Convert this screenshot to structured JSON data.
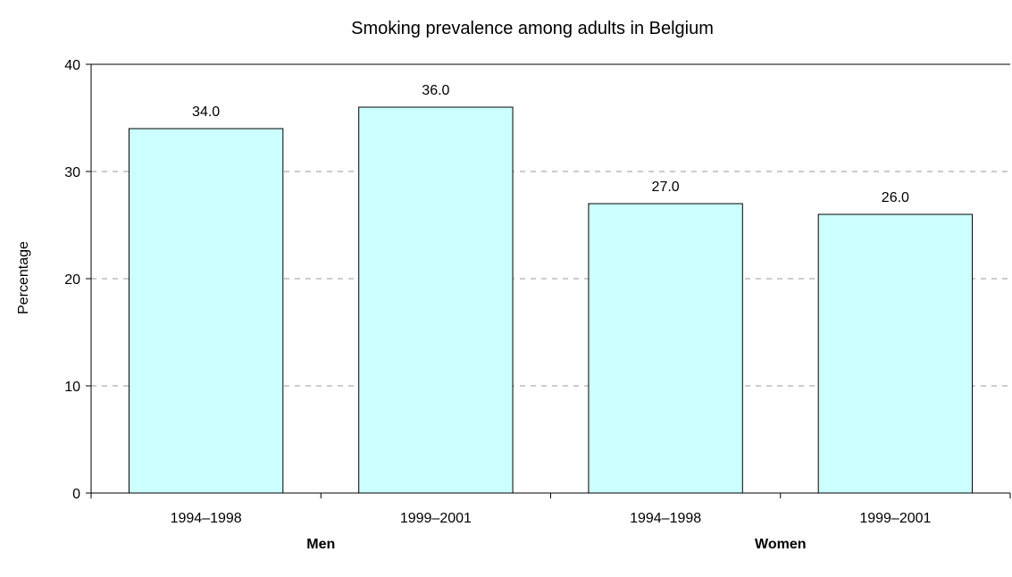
{
  "chart_data": {
    "type": "bar",
    "title": "Smoking prevalence among adults in Belgium",
    "xlabel": "",
    "ylabel": "Percentage",
    "ylim": [
      0,
      40
    ],
    "yticks": [
      0,
      10,
      20,
      30,
      40
    ],
    "grid": "horizontal dashed",
    "legend": "none",
    "categories": [
      "1994–1998",
      "1999–2001",
      "1994–1998",
      "1999–2001"
    ],
    "groups": [
      {
        "label": "Men",
        "categories": [
          "1994–1998",
          "1999–2001"
        ]
      },
      {
        "label": "Women",
        "categories": [
          "1994–1998",
          "1999–2001"
        ]
      }
    ],
    "values": [
      34.0,
      36.0,
      27.0,
      26.0
    ],
    "data_labels": [
      "34.0",
      "36.0",
      "27.0",
      "26.0"
    ],
    "colors": {
      "bar_fill": "#ccffff",
      "bar_stroke": "#000000",
      "grid": "#999999",
      "axis": "#000000"
    }
  }
}
